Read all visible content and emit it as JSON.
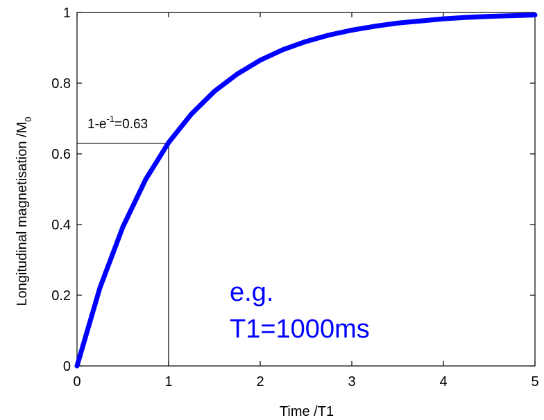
{
  "chart_data": {
    "type": "line",
    "title": "",
    "xlabel": "Time /T1",
    "ylabel": {
      "main": "Longitudinal magnetisation /M",
      "subscript": "0"
    },
    "xlim": [
      0,
      5
    ],
    "ylim": [
      0,
      1
    ],
    "x_ticks": [
      "0",
      "1",
      "2",
      "3",
      "4",
      "5"
    ],
    "y_ticks": [
      "0",
      "0.2",
      "0.4",
      "0.6",
      "0.8",
      "1"
    ],
    "grid": false,
    "legend": "none",
    "series": [
      {
        "color": "#0000ff",
        "x": [
          0,
          0.25,
          0.5,
          0.75,
          1,
          1.25,
          1.5,
          1.75,
          2,
          2.25,
          2.5,
          2.75,
          3,
          3.25,
          3.5,
          3.75,
          4,
          4.25,
          4.5,
          4.75,
          5
        ],
        "y": [
          0,
          0.221,
          0.393,
          0.528,
          0.632,
          0.713,
          0.777,
          0.826,
          0.865,
          0.895,
          0.918,
          0.936,
          0.95,
          0.961,
          0.97,
          0.976,
          0.982,
          0.986,
          0.989,
          0.991,
          0.993
        ]
      }
    ],
    "annotations": {
      "reference_point": {
        "x": 1,
        "y": 0.63
      },
      "label": {
        "base": "1-e",
        "superscript": "-1",
        "rest": "=0.63"
      },
      "note_lines": [
        "e.g.",
        "T1=1000ms"
      ],
      "note_color": "#0000ff"
    }
  }
}
